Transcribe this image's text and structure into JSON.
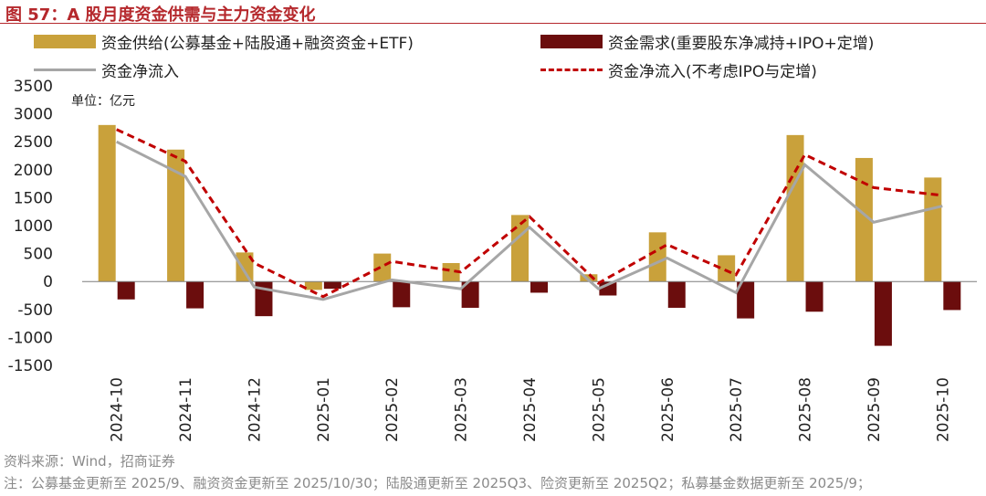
{
  "figure": {
    "title": "图 57：A 股月度资金供需与主力资金变化",
    "unit": "单位：亿元",
    "source": "资料来源：Wind，招商证券",
    "note": "注：公募基金更新至 2025/9、融资资金更新至 2025/10/30；陆股通更新至 2025Q3、险资更新至 2025Q2；私募基金数据更新至 2025/9；"
  },
  "colors": {
    "supply": "#c9a13b",
    "demand": "#6b0d0d",
    "net": "#a6a6a6",
    "net_ex": "#c00000",
    "title": "#b5282c"
  },
  "chart_data": {
    "type": "bar",
    "categories": [
      "2024-10",
      "2024-11",
      "2024-12",
      "2025-01",
      "2025-02",
      "2025-03",
      "2025-04",
      "2025-05",
      "2025-06",
      "2025-07",
      "2025-08",
      "2025-09",
      "2025-10"
    ],
    "ylim": [
      -1500,
      3500
    ],
    "yticks": [
      -1500,
      -1000,
      -500,
      0,
      500,
      1000,
      1500,
      2000,
      2500,
      3000,
      3500
    ],
    "ytick_labels": [
      "-1500",
      "-1000",
      "-500",
      "0",
      "500",
      "1000",
      "1500",
      "2000",
      "2500",
      "3000",
      "3500"
    ],
    "legend_position": "top",
    "grid": false,
    "series": [
      {
        "name": "资金供给(公募基金+陆股通+融资资金+ETF)",
        "kind": "bar",
        "values": [
          2800,
          2360,
          520,
          -150,
          500,
          330,
          1190,
          130,
          880,
          470,
          2620,
          2210,
          1860
        ]
      },
      {
        "name": "资金需求(重要股东净减持+IPO+定增)",
        "kind": "bar",
        "values": [
          -320,
          -480,
          -620,
          -130,
          -460,
          -470,
          -200,
          -250,
          -470,
          -660,
          -540,
          -1150,
          -510
        ]
      },
      {
        "name": "资金净流入",
        "kind": "line",
        "values": [
          2500,
          1880,
          -100,
          -320,
          30,
          -130,
          970,
          -130,
          420,
          -200,
          2090,
          1060,
          1350
        ]
      },
      {
        "name": "资金净流入(不考虑IPO与定增)",
        "kind": "dashed-line",
        "values": [
          2720,
          2150,
          330,
          -270,
          360,
          170,
          1160,
          -30,
          660,
          120,
          2270,
          1680,
          1540
        ]
      }
    ]
  }
}
